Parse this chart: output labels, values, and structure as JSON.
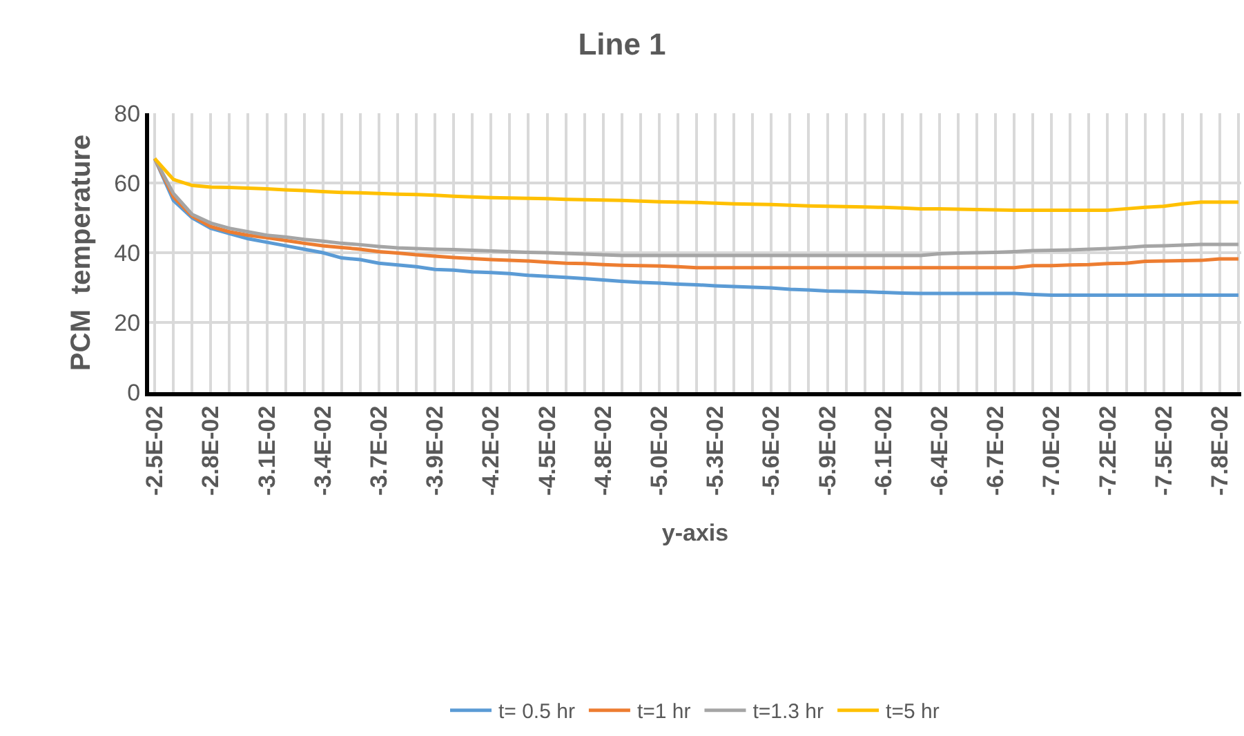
{
  "chart_data": {
    "type": "line",
    "title": "Line 1",
    "xlabel": "y-axis",
    "ylabel": "PCM  temperature",
    "categories": [
      "-2.5E-02",
      null,
      null,
      "-2.8E-02",
      null,
      null,
      "-3.1E-02",
      null,
      null,
      "-3.4E-02",
      null,
      null,
      "-3.7E-02",
      null,
      null,
      "-3.9E-02",
      null,
      null,
      "-4.2E-02",
      null,
      null,
      "-4.5E-02",
      null,
      null,
      "-4.8E-02",
      null,
      null,
      "-5.0E-02",
      null,
      null,
      "-5.3E-02",
      null,
      null,
      "-5.6E-02",
      null,
      null,
      "-5.9E-02",
      null,
      null,
      "-6.1E-02",
      null,
      null,
      "-6.4E-02",
      null,
      null,
      "-6.7E-02",
      null,
      null,
      "-7.0E-02",
      null,
      null,
      "-7.2E-02",
      null,
      null,
      "-7.5E-02",
      null,
      null,
      "-7.8E-02",
      null
    ],
    "series": [
      {
        "name": "t= 0.5 hr",
        "color": "#5b9bd5",
        "values": [
          67,
          55,
          50,
          47,
          45.5,
          44,
          43,
          42,
          41,
          40,
          38.5,
          38,
          37,
          36.5,
          36,
          35.2,
          35,
          34.5,
          34.3,
          34,
          33.5,
          33.2,
          32.9,
          32.6,
          32.2,
          31.8,
          31.5,
          31.3,
          31,
          30.8,
          30.5,
          30.3,
          30.1,
          29.9,
          29.5,
          29.3,
          29,
          28.9,
          28.8,
          28.6,
          28.4,
          28.3,
          28.3,
          28.3,
          28.3,
          28.3,
          28.3,
          28,
          27.8,
          27.8,
          27.8,
          27.8,
          27.8,
          27.8,
          27.8,
          27.8,
          27.8,
          27.8,
          27.8
        ]
      },
      {
        "name": "t=1 hr",
        "color": "#ed7d31",
        "values": [
          67,
          56,
          50.5,
          47.5,
          46,
          45,
          44.3,
          43.5,
          42.7,
          42,
          41.5,
          41,
          40.3,
          39.9,
          39.4,
          39,
          38.6,
          38.3,
          38,
          37.8,
          37.6,
          37.3,
          37,
          36.9,
          36.6,
          36.4,
          36.3,
          36.2,
          36,
          35.7,
          35.7,
          35.7,
          35.7,
          35.7,
          35.7,
          35.7,
          35.7,
          35.7,
          35.7,
          35.7,
          35.7,
          35.7,
          35.7,
          35.7,
          35.7,
          35.7,
          35.7,
          36.3,
          36.3,
          36.5,
          36.6,
          36.9,
          37,
          37.5,
          37.6,
          37.7,
          37.8,
          38.2,
          38.2
        ]
      },
      {
        "name": "t=1.3 hr",
        "color": "#a5a5a5",
        "values": [
          67,
          57,
          51,
          48.5,
          47,
          46,
          45,
          44.5,
          43.8,
          43.3,
          42.7,
          42.3,
          41.8,
          41.4,
          41.2,
          41,
          40.9,
          40.7,
          40.5,
          40.3,
          40.1,
          40,
          39.8,
          39.6,
          39.4,
          39.2,
          39.2,
          39.2,
          39.2,
          39.2,
          39.2,
          39.2,
          39.2,
          39.2,
          39.2,
          39.2,
          39.2,
          39.2,
          39.2,
          39.2,
          39.2,
          39.2,
          39.7,
          39.9,
          40,
          40.1,
          40.3,
          40.6,
          40.7,
          40.8,
          41,
          41.2,
          41.5,
          41.9,
          42,
          42.2,
          42.4,
          42.4,
          42.4
        ]
      },
      {
        "name": "t=5 hr",
        "color": "#ffc000",
        "values": [
          67,
          61,
          59.3,
          58.8,
          58.7,
          58.5,
          58.3,
          58,
          57.8,
          57.5,
          57.3,
          57.2,
          57,
          56.8,
          56.7,
          56.5,
          56.2,
          56,
          55.8,
          55.7,
          55.6,
          55.5,
          55.3,
          55.2,
          55.1,
          55,
          54.8,
          54.6,
          54.5,
          54.4,
          54.2,
          54,
          53.9,
          53.8,
          53.6,
          53.4,
          53.3,
          53.2,
          53.1,
          53,
          52.8,
          52.6,
          52.6,
          52.5,
          52.4,
          52.3,
          52.2,
          52.2,
          52.2,
          52.2,
          52.2,
          52.2,
          52.6,
          53,
          53.3,
          54,
          54.5,
          54.5,
          54.5
        ]
      }
    ],
    "ylim": [
      0,
      80
    ],
    "yticks": [
      0,
      20,
      40,
      60,
      80
    ],
    "grid": true,
    "legend": "bottom",
    "marker": "none",
    "line_style": "solid"
  }
}
